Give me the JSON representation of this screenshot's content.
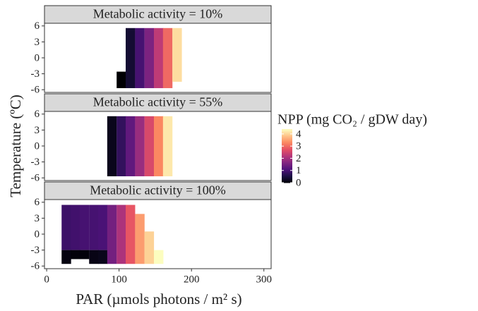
{
  "chart_data": {
    "type": "heatmap",
    "xlabel": "PAR (µmols photons / m² s)",
    "ylabel": "Temperature (ºC)",
    "legend_title": "NPP (mg CO₂ / gDW day)",
    "xlim": [
      -3,
      310
    ],
    "xticks": [
      0,
      100,
      200,
      300
    ],
    "ylim": [
      -6.5,
      6.5
    ],
    "yticks": [
      -6,
      -3,
      0,
      3,
      6
    ],
    "zlim": [
      0,
      4.4
    ],
    "zticks": [
      0,
      1,
      2,
      3,
      4
    ],
    "colorscale": [
      "#000004",
      "#1c1044",
      "#4f127b",
      "#812581",
      "#b5367a",
      "#e55064",
      "#fb8761",
      "#fec287",
      "#fcfdbf"
    ],
    "tile_width": 12.7,
    "panels": [
      {
        "title": "Metabolic activity = 10%",
        "tiles": [
          {
            "x": 103,
            "ymin": -5.7,
            "ymax": -2.6,
            "value": 0
          },
          {
            "x": 115.5,
            "ymin": -5.7,
            "ymax": 5.6,
            "value": 0.4
          },
          {
            "x": 128.5,
            "ymin": -5.7,
            "ymax": 5.6,
            "value": 1
          },
          {
            "x": 141.5,
            "ymin": -5.7,
            "ymax": 5.6,
            "value": 1.6
          },
          {
            "x": 154.5,
            "ymin": -5.7,
            "ymax": 5.6,
            "value": 2.3
          },
          {
            "x": 167,
            "ymin": -5.7,
            "ymax": 5.6,
            "value": 3
          },
          {
            "x": 180,
            "ymin": -4.5,
            "ymax": 5.6,
            "value": 4.1
          }
        ]
      },
      {
        "title": "Metabolic activity = 55%",
        "tiles": [
          {
            "x": 90,
            "ymin": -5.7,
            "ymax": 5.6,
            "value": 0.2
          },
          {
            "x": 103,
            "ymin": -5.7,
            "ymax": 5.6,
            "value": 0.8
          },
          {
            "x": 115.5,
            "ymin": -5.7,
            "ymax": 5.6,
            "value": 1.3
          },
          {
            "x": 128.5,
            "ymin": -5.7,
            "ymax": 5.6,
            "value": 1.9
          },
          {
            "x": 141.5,
            "ymin": -5.7,
            "ymax": 5.6,
            "value": 2.6
          },
          {
            "x": 154.5,
            "ymin": -5.7,
            "ymax": 5.6,
            "value": 3.3
          },
          {
            "x": 167,
            "ymin": -5.7,
            "ymax": 5.6,
            "value": 4.2
          }
        ]
      },
      {
        "title": "Metabolic activity = 100%",
        "tiles": [
          {
            "x": 27,
            "ymin": -3,
            "ymax": 5.5,
            "value": 0.9
          },
          {
            "x": 27,
            "ymin": -5.6,
            "ymax": -3,
            "value": 0.1
          },
          {
            "x": 39.5,
            "ymin": -3,
            "ymax": 5.5,
            "value": 0.95
          },
          {
            "x": 39.5,
            "ymin": -4.7,
            "ymax": -3,
            "value": 0.05
          },
          {
            "x": 52,
            "ymin": -3,
            "ymax": 5.5,
            "value": 1
          },
          {
            "x": 52,
            "ymin": -4.7,
            "ymax": -3,
            "value": 0.05
          },
          {
            "x": 65,
            "ymin": -3,
            "ymax": 5.5,
            "value": 1
          },
          {
            "x": 65,
            "ymin": -5.6,
            "ymax": -3,
            "value": 0.15
          },
          {
            "x": 77.5,
            "ymin": -3,
            "ymax": 5.5,
            "value": 1.05
          },
          {
            "x": 77.5,
            "ymin": -5.6,
            "ymax": -3,
            "value": 0.2
          },
          {
            "x": 90,
            "ymin": -5.6,
            "ymax": 5.5,
            "value": 1.5
          },
          {
            "x": 103,
            "ymin": -5.6,
            "ymax": 5.5,
            "value": 2.1
          },
          {
            "x": 115.5,
            "ymin": -5.6,
            "ymax": 5.5,
            "value": 2.8
          },
          {
            "x": 128.5,
            "ymin": -5.6,
            "ymax": 3.8,
            "value": 3.5
          },
          {
            "x": 141.5,
            "ymin": -5.6,
            "ymax": 0.5,
            "value": 4
          },
          {
            "x": 154.5,
            "ymin": -5.6,
            "ymax": -3,
            "value": 4.4
          }
        ]
      }
    ]
  }
}
